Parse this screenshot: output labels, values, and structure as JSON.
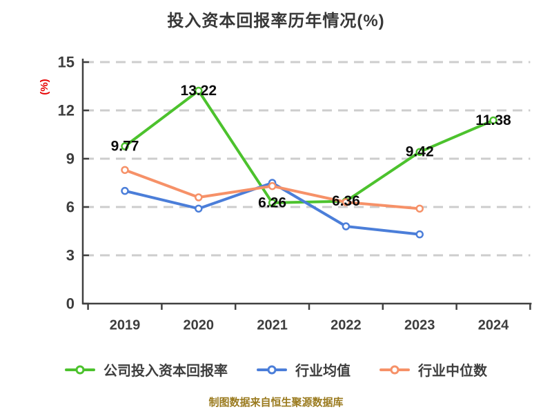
{
  "page": {
    "background": "#ffffff"
  },
  "title": "投入资本回报率历年情况(%)",
  "y_axis_unit": "(%)",
  "footer_note": "制图数据来自恒生聚源数据库",
  "colors": {
    "title_text": "#383838",
    "axis": "#404040",
    "tick_label": "#3d3d3d",
    "gridline": "#cdcdcd",
    "value_label": "#0c0c0c",
    "y_axis_unit": "#e60000",
    "footer": "#9a7a1e",
    "marker_fill": "#ffffff"
  },
  "chart_data": {
    "type": "line",
    "title": "投入资本回报率历年情况(%)",
    "xlabel": "",
    "ylabel": "(%)",
    "categories": [
      "2019",
      "2020",
      "2021",
      "2022",
      "2023",
      "2024"
    ],
    "ylim": [
      0,
      15
    ],
    "yticks": [
      0,
      3,
      6,
      9,
      12,
      15
    ],
    "grid": "horizontal dashed gridlines",
    "legend_position": "bottom",
    "series": [
      {
        "name": "公司投入资本回报率",
        "color": "#4cc22d",
        "values": [
          9.77,
          13.22,
          6.26,
          6.36,
          9.42,
          11.38
        ],
        "data_labels": [
          "9.77",
          "13.22",
          "6.26",
          "6.36",
          "9.42",
          "11.38"
        ]
      },
      {
        "name": "行业均值",
        "color": "#4b7ed9",
        "values": [
          7.0,
          5.9,
          7.5,
          4.8,
          4.3,
          null
        ],
        "data_labels": null
      },
      {
        "name": "行业中位数",
        "color": "#f69168",
        "values": [
          8.3,
          6.6,
          7.3,
          6.3,
          5.9,
          null
        ],
        "data_labels": null
      }
    ],
    "footer": "制图数据来自恒生聚源数据库"
  }
}
